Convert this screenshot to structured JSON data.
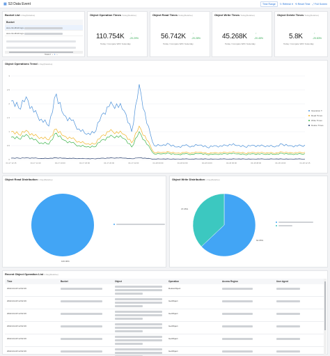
{
  "header": {
    "title": "S3 Data Event",
    "time_range": "Time Range",
    "refresh": "Refresh",
    "reset_time": "Reset Time",
    "full_screen": "Full Screen"
  },
  "bucket_list": {
    "title": "Bucket List",
    "sub": "1 Day(Relative)",
    "column": "Bucket",
    "rows": [
      "aws-cloudtrail-logs-",
      "aws-cloudtrail-logs-"
    ],
    "pagination": "Total 2"
  },
  "stats": [
    {
      "title": "Object Operation Times",
      "sub": "Today(Relative)",
      "value": "110.754K",
      "pct": "-20.29%",
      "caption": "Today / Compare With Yesterday"
    },
    {
      "title": "Object Read Times",
      "sub": "Today(Relative)",
      "value": "56.742K",
      "pct": "-20.28%",
      "caption": "Today / Compare With Yesterday"
    },
    {
      "title": "Object Write Times",
      "sub": "Today(Relative)",
      "value": "45.268K",
      "pct": "-20.45%",
      "caption": "Today / Compare With Yesterday"
    },
    {
      "title": "Object Delete Times",
      "sub": "Today(Relative)",
      "value": "5.8K",
      "pct": "-20.83%",
      "caption": "Today / Compare With Yesterday"
    }
  ],
  "trend": {
    "title": "Object Operations Trend",
    "sub": "1 Day(Relative)",
    "legend": [
      "Operation T.",
      "Read Times",
      "Write Times",
      "Delete Times"
    ]
  },
  "read_dist": {
    "title": "Object Read Distribution",
    "sub": "1 Day(Relative)",
    "slice_label": "100.00%"
  },
  "write_dist": {
    "title": "Object Write Distribution",
    "sub": "1 Day(Relative)",
    "label_a": "37.05%",
    "label_b": "62.95%"
  },
  "ops_list": {
    "title": "Recent Object Operation List",
    "sub": "1 Day(Relative)",
    "columns": [
      "Time",
      "Bucket",
      "Object",
      "Operation",
      "Access Region",
      "User Agent"
    ],
    "rows": [
      {
        "time": "2022-04-18 12:02:46",
        "operation": "DeleteObject"
      },
      {
        "time": "2022-04-18 12:02:46",
        "operation": "GetObject"
      },
      {
        "time": "2022-04-18 12:02:46",
        "operation": "GetObject"
      },
      {
        "time": "2022-04-18 12:02:46",
        "operation": "GetObject"
      },
      {
        "time": "2022-04-18 12:02:46",
        "operation": "GetObject"
      },
      {
        "time": "2022-04-18 12:02:46",
        "operation": "GetObject"
      }
    ]
  },
  "chart_data": [
    {
      "type": "line",
      "title": "Object Operations Trend",
      "x_ticks": [
        "04-17 12:15",
        "04-17 14:10",
        "04-17 16:00",
        "04-17 18:00",
        "04-17 20:00",
        "04-17 22:00",
        "04-18 00:00",
        "04-18 02:00",
        "04-18 04:00",
        "04-18 06:00",
        "04-18 08:00",
        "04-18 10:00",
        "04-18 12:15"
      ],
      "y_ticks": [
        "0",
        "0.5",
        "1",
        "1.5",
        "2",
        "2.5",
        "3"
      ],
      "ylim": [
        0,
        3
      ],
      "series": [
        {
          "name": "Operation T.",
          "color": "#4a90d9",
          "values": [
            2.1,
            1.85,
            2.25,
            1.7,
            1.45,
            1.2,
            2.35,
            1.6,
            1.4,
            1.1,
            0.9,
            0.95,
            1.6,
            1.9,
            2.0,
            1.75,
            1.0,
            2.7,
            1.3,
            0.5,
            0.5,
            0.55,
            0.45,
            0.5,
            0.48,
            0.52,
            0.44,
            0.5,
            0.47,
            0.55,
            0.5,
            0.46,
            0.52,
            0.48,
            0.5,
            0.45,
            0.55,
            0.5,
            0.48,
            0.52
          ]
        },
        {
          "name": "Read Times",
          "color": "#f0b429",
          "values": [
            1.0,
            0.9,
            1.05,
            0.85,
            0.8,
            0.7,
            1.1,
            0.85,
            0.75,
            0.65,
            0.55,
            0.55,
            0.85,
            1.0,
            1.0,
            0.9,
            0.6,
            1.2,
            0.7,
            0.25,
            0.25,
            0.27,
            0.23,
            0.25,
            0.24,
            0.26,
            0.22,
            0.25,
            0.24,
            0.27,
            0.25,
            0.23,
            0.26,
            0.24,
            0.25,
            0.22,
            0.27,
            0.25,
            0.24,
            0.26
          ]
        },
        {
          "name": "Write Times",
          "color": "#3cb44b",
          "values": [
            0.8,
            0.75,
            0.9,
            0.7,
            0.6,
            0.55,
            0.95,
            0.7,
            0.6,
            0.5,
            0.45,
            0.45,
            0.7,
            0.8,
            0.85,
            0.75,
            0.45,
            1.0,
            0.55,
            0.2,
            0.2,
            0.22,
            0.18,
            0.2,
            0.19,
            0.21,
            0.18,
            0.2,
            0.19,
            0.22,
            0.2,
            0.18,
            0.21,
            0.19,
            0.2,
            0.18,
            0.22,
            0.2,
            0.19,
            0.21
          ]
        },
        {
          "name": "Delete Times",
          "color": "#243b6b",
          "values": [
            0.05,
            0.05,
            0.06,
            0.05,
            0.04,
            0.04,
            0.06,
            0.05,
            0.04,
            0.04,
            0.03,
            0.03,
            0.05,
            0.05,
            0.06,
            0.05,
            0.03,
            0.07,
            0.04,
            0.02,
            0.02,
            0.02,
            0.02,
            0.02,
            0.02,
            0.02,
            0.02,
            0.02,
            0.02,
            0.02,
            0.02,
            0.02,
            0.02,
            0.02,
            0.02,
            0.02,
            0.02,
            0.02,
            0.02,
            0.02
          ]
        }
      ]
    },
    {
      "type": "pie",
      "title": "Object Read Distribution",
      "slices": [
        {
          "value": 100.0,
          "color": "#42a5f5"
        }
      ]
    },
    {
      "type": "pie",
      "title": "Object Write Distribution",
      "slices": [
        {
          "value": 62.95,
          "color": "#42a5f5"
        },
        {
          "value": 37.05,
          "color": "#3cc8c0"
        }
      ]
    }
  ]
}
